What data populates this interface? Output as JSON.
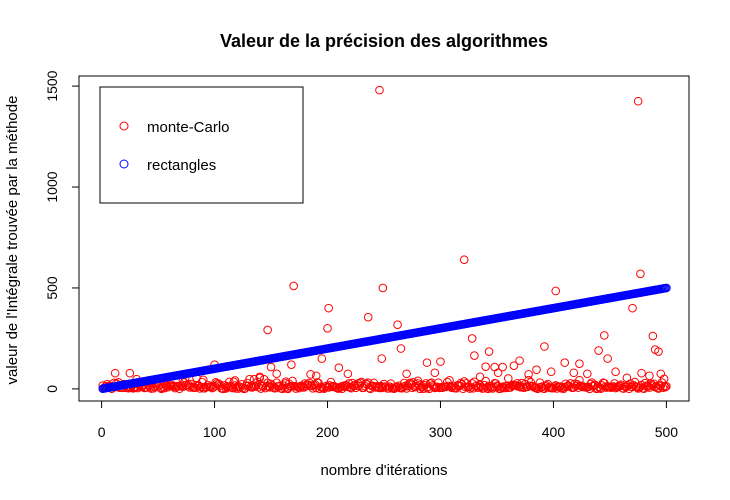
{
  "chart_data": {
    "type": "scatter",
    "title": "Valeur de la précision des algorithmes",
    "xlabel": "nombre d'itérations",
    "ylabel": "valeur de l'Intégrale trouvée par la méthode",
    "xlim": [
      -20,
      520
    ],
    "ylim": [
      -60,
      1550
    ],
    "xticks": [
      0,
      100,
      200,
      300,
      400,
      500
    ],
    "yticks": [
      0,
      500,
      1000,
      1500
    ],
    "grid": false,
    "legend_position": "top-left",
    "series": [
      {
        "name": "monte-Carlo",
        "color": "#ff0000",
        "marker": "open-circle",
        "baseline_x_range": [
          1,
          500
        ],
        "points": [
          [
            12,
            78
          ],
          [
            25,
            78
          ],
          [
            31,
            48
          ],
          [
            55,
            32
          ],
          [
            72,
            40
          ],
          [
            90,
            45
          ],
          [
            100,
            120
          ],
          [
            118,
            42
          ],
          [
            135,
            48
          ],
          [
            140,
            60
          ],
          [
            147,
            292
          ],
          [
            150,
            108
          ],
          [
            155,
            75
          ],
          [
            163,
            36
          ],
          [
            168,
            120
          ],
          [
            170,
            510
          ],
          [
            185,
            72
          ],
          [
            190,
            65
          ],
          [
            195,
            150
          ],
          [
            200,
            300
          ],
          [
            201,
            400
          ],
          [
            210,
            105
          ],
          [
            218,
            75
          ],
          [
            236,
            355
          ],
          [
            246,
            1480
          ],
          [
            248,
            150
          ],
          [
            249,
            500
          ],
          [
            262,
            318
          ],
          [
            265,
            200
          ],
          [
            270,
            75
          ],
          [
            280,
            40
          ],
          [
            288,
            130
          ],
          [
            295,
            80
          ],
          [
            300,
            135
          ],
          [
            321,
            640
          ],
          [
            328,
            250
          ],
          [
            330,
            165
          ],
          [
            335,
            60
          ],
          [
            340,
            110
          ],
          [
            343,
            185
          ],
          [
            348,
            108
          ],
          [
            351,
            80
          ],
          [
            355,
            108
          ],
          [
            360,
            52
          ],
          [
            365,
            115
          ],
          [
            370,
            140
          ],
          [
            378,
            72
          ],
          [
            385,
            95
          ],
          [
            392,
            210
          ],
          [
            398,
            85
          ],
          [
            402,
            485
          ],
          [
            410,
            130
          ],
          [
            418,
            80
          ],
          [
            423,
            125
          ],
          [
            430,
            75
          ],
          [
            440,
            190
          ],
          [
            445,
            265
          ],
          [
            448,
            150
          ],
          [
            455,
            85
          ],
          [
            465,
            55
          ],
          [
            470,
            400
          ],
          [
            475,
            1425
          ],
          [
            477,
            570
          ],
          [
            478,
            78
          ],
          [
            485,
            65
          ],
          [
            488,
            262
          ],
          [
            490,
            195
          ],
          [
            493,
            185
          ],
          [
            495,
            75
          ],
          [
            498,
            50
          ]
        ]
      },
      {
        "name": "rectangles",
        "color": "#0000ff",
        "marker": "open-circle",
        "x_range": [
          1,
          500
        ],
        "y_equals_x": true
      }
    ]
  }
}
